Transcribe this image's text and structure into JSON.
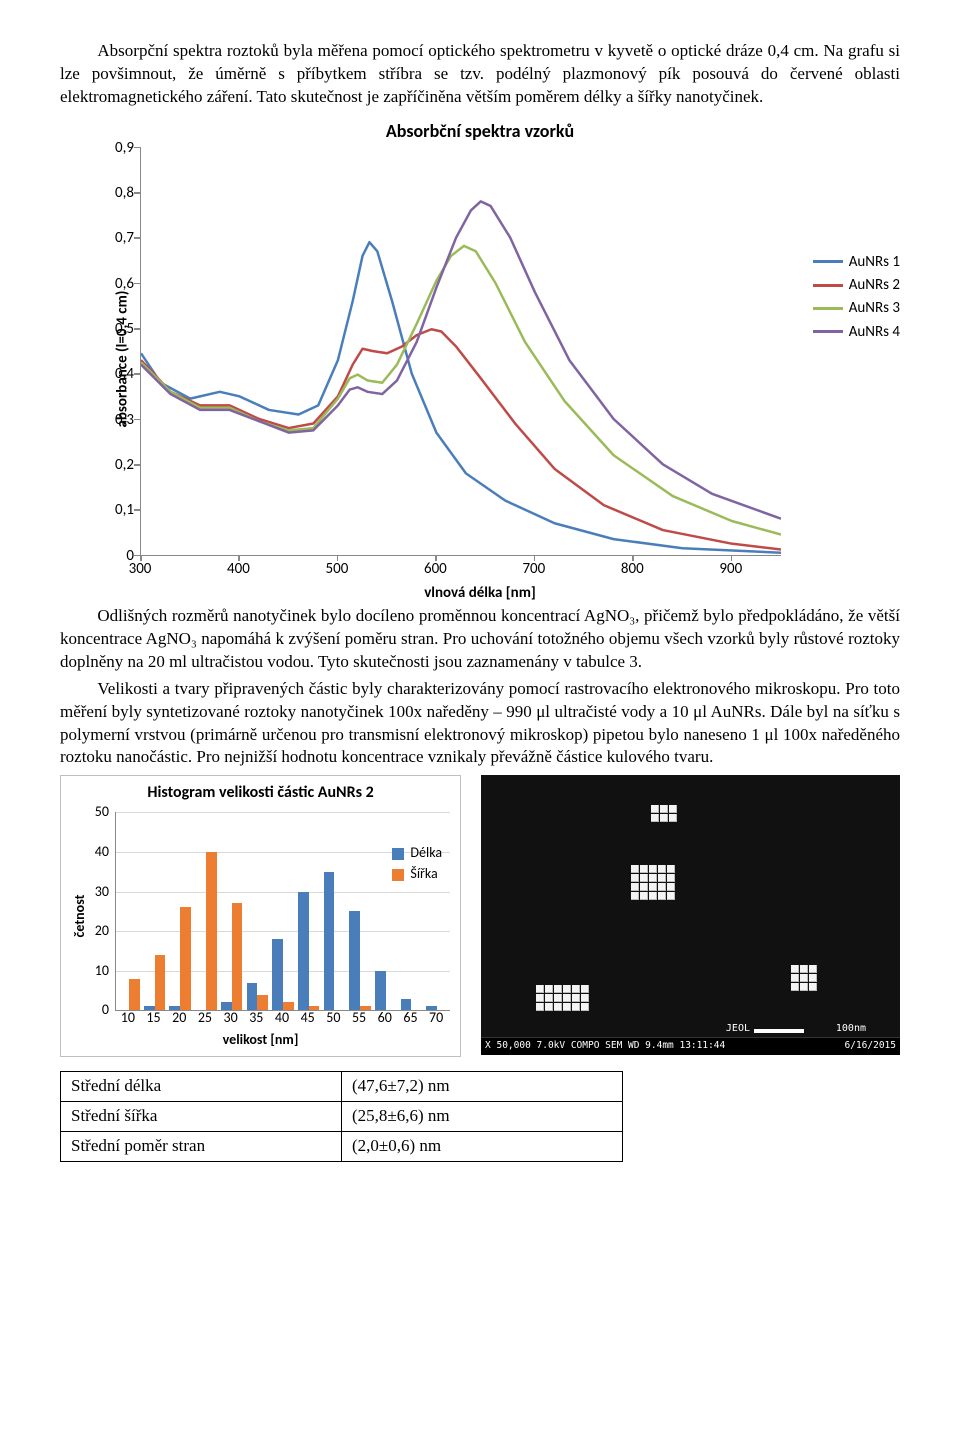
{
  "para1": "Absorpční spektra roztoků byla měřena pomocí optického spektrometru v kyvetě o optické dráze 0,4 cm. Na grafu si lze povšimnout, že úměrně s příbytkem stříbra se tzv. podélný plazmonový pík posouvá do červené oblasti elektromagnetického záření. Tato skutečnost je zapříčiněna větším poměrem délky a šířky nanotyčinek.",
  "para2": "Odlišných rozměrů nanotyčinek bylo docíleno proměnnou koncentrací AgNO₃, přičemž bylo předpokládáno, že větší koncentrace AgNO₃ napomáhá k zvýšení poměru stran. Pro uchování totožného objemu všech vzorků byly růstové roztoky doplněny na 20 ml ultračistou vodou. Tyto skutečnosti jsou zaznamenány v tabulce 3.",
  "para3": "Velikosti a tvary připravených částic byly charakterizovány pomocí rastrovacího elektronového mikroskopu. Pro toto měření byly syntetizované roztoky nanotyčinek 100x naředěny – 990 μl ultračisté vody a 10 μl AuNRs. Dále byl na síťku s polymerní vrstvou (primárně určenou pro transmisní elektronový mikroskop) pipetou bylo naneseno 1 μl 100x naředěného roztoku nanočástic. Pro nejnižší hodnotu koncentrace vznikaly převážně částice kulového tvaru.",
  "chart1": {
    "type": "line",
    "title": "Absorbční spektra vzorků",
    "xlabel": "vlnová délka [nm]",
    "ylabel": "absorbance (l=0,4 cm)",
    "xlim": [
      300,
      950
    ],
    "ylim": [
      0,
      0.9
    ],
    "xtick_start": 300,
    "xtick_end": 900,
    "xtick_step": 100,
    "ytick_start": 0,
    "ytick_end": 0.9,
    "ytick_step": 0.1,
    "label_fontsize": 15,
    "title_fontsize": 18,
    "line_width": 2.5,
    "background_color": "#ffffff",
    "axis_color": "#888888",
    "series": [
      {
        "name": "AuNRs 1",
        "color": "#4a7ebb",
        "points": [
          [
            300,
            0.445
          ],
          [
            320,
            0.38
          ],
          [
            350,
            0.345
          ],
          [
            380,
            0.36
          ],
          [
            400,
            0.35
          ],
          [
            430,
            0.32
          ],
          [
            460,
            0.31
          ],
          [
            480,
            0.33
          ],
          [
            500,
            0.43
          ],
          [
            515,
            0.56
          ],
          [
            525,
            0.66
          ],
          [
            532,
            0.69
          ],
          [
            540,
            0.67
          ],
          [
            555,
            0.56
          ],
          [
            575,
            0.4
          ],
          [
            600,
            0.27
          ],
          [
            630,
            0.18
          ],
          [
            670,
            0.12
          ],
          [
            720,
            0.07
          ],
          [
            780,
            0.035
          ],
          [
            850,
            0.015
          ],
          [
            950,
            0.005
          ]
        ]
      },
      {
        "name": "AuNRs 2",
        "color": "#be4b48",
        "points": [
          [
            300,
            0.43
          ],
          [
            330,
            0.36
          ],
          [
            360,
            0.33
          ],
          [
            390,
            0.33
          ],
          [
            420,
            0.3
          ],
          [
            450,
            0.28
          ],
          [
            475,
            0.29
          ],
          [
            500,
            0.35
          ],
          [
            515,
            0.42
          ],
          [
            525,
            0.455
          ],
          [
            535,
            0.45
          ],
          [
            550,
            0.445
          ],
          [
            565,
            0.46
          ],
          [
            580,
            0.485
          ],
          [
            595,
            0.498
          ],
          [
            605,
            0.493
          ],
          [
            620,
            0.46
          ],
          [
            645,
            0.39
          ],
          [
            680,
            0.29
          ],
          [
            720,
            0.19
          ],
          [
            770,
            0.11
          ],
          [
            830,
            0.055
          ],
          [
            900,
            0.025
          ],
          [
            950,
            0.012
          ]
        ]
      },
      {
        "name": "AuNRs 3",
        "color": "#9bbb59",
        "points": [
          [
            300,
            0.425
          ],
          [
            330,
            0.36
          ],
          [
            360,
            0.325
          ],
          [
            390,
            0.325
          ],
          [
            420,
            0.295
          ],
          [
            450,
            0.275
          ],
          [
            475,
            0.28
          ],
          [
            500,
            0.345
          ],
          [
            512,
            0.39
          ],
          [
            520,
            0.398
          ],
          [
            530,
            0.385
          ],
          [
            545,
            0.38
          ],
          [
            560,
            0.42
          ],
          [
            580,
            0.51
          ],
          [
            600,
            0.605
          ],
          [
            615,
            0.66
          ],
          [
            628,
            0.682
          ],
          [
            640,
            0.67
          ],
          [
            660,
            0.6
          ],
          [
            690,
            0.47
          ],
          [
            730,
            0.34
          ],
          [
            780,
            0.22
          ],
          [
            840,
            0.13
          ],
          [
            900,
            0.075
          ],
          [
            950,
            0.045
          ]
        ]
      },
      {
        "name": "AuNRs 4",
        "color": "#8064a2",
        "points": [
          [
            300,
            0.42
          ],
          [
            330,
            0.355
          ],
          [
            360,
            0.32
          ],
          [
            390,
            0.32
          ],
          [
            420,
            0.295
          ],
          [
            450,
            0.27
          ],
          [
            475,
            0.275
          ],
          [
            500,
            0.33
          ],
          [
            512,
            0.365
          ],
          [
            520,
            0.37
          ],
          [
            530,
            0.36
          ],
          [
            545,
            0.355
          ],
          [
            560,
            0.385
          ],
          [
            580,
            0.47
          ],
          [
            600,
            0.59
          ],
          [
            620,
            0.7
          ],
          [
            635,
            0.76
          ],
          [
            645,
            0.78
          ],
          [
            655,
            0.77
          ],
          [
            675,
            0.7
          ],
          [
            700,
            0.58
          ],
          [
            735,
            0.43
          ],
          [
            780,
            0.3
          ],
          [
            830,
            0.2
          ],
          [
            880,
            0.135
          ],
          [
            950,
            0.08
          ]
        ]
      }
    ]
  },
  "chart2": {
    "type": "grouped-bar",
    "title": "Histogram velikosti částic AuNRs 2",
    "xlabel": "velikost [nm]",
    "ylabel": "četnost",
    "categories": [
      10,
      15,
      20,
      25,
      30,
      35,
      40,
      45,
      50,
      55,
      60,
      65,
      70
    ],
    "ylim": [
      0,
      50
    ],
    "ytick_step": 10,
    "series": [
      {
        "name": "Délka",
        "color": "#4a7ebb",
        "values": [
          0,
          1,
          1,
          0,
          2,
          7,
          18,
          30,
          35,
          25,
          10,
          3,
          1
        ]
      },
      {
        "name": "Šířka",
        "color": "#ed7d31",
        "values": [
          8,
          14,
          26,
          40,
          27,
          4,
          2,
          1,
          0,
          1,
          0,
          0,
          0
        ]
      }
    ],
    "grid_color": "#d9d9d9",
    "bar_width": 0.42,
    "label_fontsize": 14,
    "title_fontsize": 16
  },
  "sem": {
    "infoline": "X 50,000   7.0kV  COMPO  SEM         WD 9.4mm  13:11:44",
    "scale_text": "100nm",
    "date": "6/16/2015",
    "brand": "JEOL"
  },
  "table": {
    "rows": [
      [
        "Střední délka",
        "(47,6±7,2) nm"
      ],
      [
        "Střední šířka",
        "(25,8±6,6) nm"
      ],
      [
        "Střední poměr stran",
        "(2,0±0,6) nm"
      ]
    ]
  }
}
